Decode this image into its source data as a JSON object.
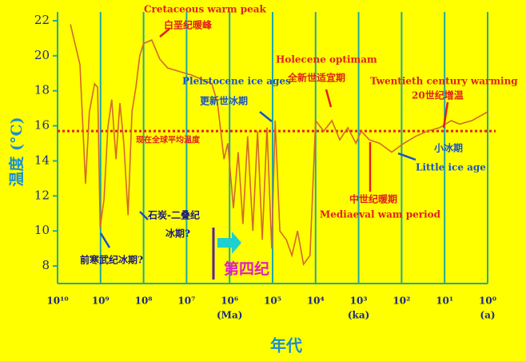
{
  "chart_data": {
    "type": "line",
    "xlabel": "年代",
    "ylabel": "温度 (°C)",
    "xscale": "log",
    "xlim": [
      10000000000.0,
      1
    ],
    "xticks": [
      {
        "value": 10000000000.0,
        "label": "10¹⁰"
      },
      {
        "value": 1000000000.0,
        "label": "10⁹"
      },
      {
        "value": 100000000.0,
        "label": "10⁸"
      },
      {
        "value": 10000000.0,
        "label": "10⁷"
      },
      {
        "value": 1000000.0,
        "label": "10⁶"
      },
      {
        "value": 100000.0,
        "label": "10⁵"
      },
      {
        "value": 10000.0,
        "label": "10⁴"
      },
      {
        "value": 1000.0,
        "label": "10³"
      },
      {
        "value": 100.0,
        "label": "10²"
      },
      {
        "value": 10.0,
        "label": "10¹"
      },
      {
        "value": 1,
        "label": "10⁰"
      }
    ],
    "x_units": [
      {
        "value": 1000000.0,
        "label": "(Ma)"
      },
      {
        "value": 1000.0,
        "label": "(ka)"
      },
      {
        "value": 1,
        "label": "(a)"
      }
    ],
    "ylim": [
      7,
      22.5
    ],
    "yticks": [
      8,
      10,
      12,
      14,
      16,
      18,
      20,
      22
    ],
    "grid": true,
    "color": "#d2692a",
    "x": [
      5010000000.0,
      3020000000.0,
      2240000000.0,
      1820000000.0,
      1380000000.0,
      1170000000.0,
      1020000000.0,
      832000000.0,
      676000000.0,
      550000000.0,
      437000000.0,
      355000000.0,
      288000000.0,
      229000000.0,
      186000000.0,
      151000000.0,
      123000000.0,
      100000000.0,
      64600000.0,
      41700000.0,
      27500000.0,
      14500000.0,
      7590000.0,
      3980000.0,
      2570000.0,
      1910000.0,
      1350000.0,
      1100000.0,
      813000.0,
      631000.0,
      490000.0,
      380000.0,
      288000.0,
      224000.0,
      174000.0,
      135000.0,
      105000.0,
      87100.0,
      67600.0,
      47900.0,
      35500.0,
      26300.0,
      19100.0,
      13500.0,
      10000.0,
      6460,
      4170,
      2750,
      1780,
      1150,
      871,
      562,
      324,
      170,
      89,
      47,
      25,
      13,
      7,
      4.5,
      2.3,
      1
    ],
    "values": [
      21.8,
      19.5,
      12.7,
      16.8,
      18.4,
      18.2,
      10.2,
      11.8,
      15.9,
      17.5,
      14.1,
      17.3,
      15.0,
      10.9,
      16.8,
      18.2,
      20.0,
      20.7,
      20.9,
      19.8,
      19.3,
      19.1,
      18.9,
      18.6,
      18.4,
      17.3,
      14.1,
      15.0,
      11.3,
      14.5,
      10.4,
      15.4,
      10.0,
      15.7,
      9.5,
      15.9,
      9.0,
      16.3,
      10.0,
      9.5,
      8.6,
      10.0,
      8.1,
      8.6,
      16.3,
      15.7,
      16.3,
      15.2,
      15.9,
      15.0,
      15.7,
      15.2,
      15.0,
      14.5,
      15.0,
      15.4,
      15.7,
      15.9,
      16.3,
      16.1,
      16.3,
      16.8
    ],
    "reference_line": {
      "value": 15.7,
      "label": "现在全球平均温度",
      "color": "#e0201a"
    },
    "annotations": [
      "Cretaceous warm peak",
      "白垩纪暖峰",
      "Pleistocene ice ages",
      "更新世冰期",
      "Holecene optimam",
      "全新世适宜期",
      "Twentieth century warming",
      "20世纪增温",
      "小冰期",
      "Little ice age",
      "中世纪暖期",
      "Mediaeval wam period",
      "石炭-二叠纪",
      "冰期?",
      "前寒武纪冰期?",
      "第四纪"
    ]
  }
}
